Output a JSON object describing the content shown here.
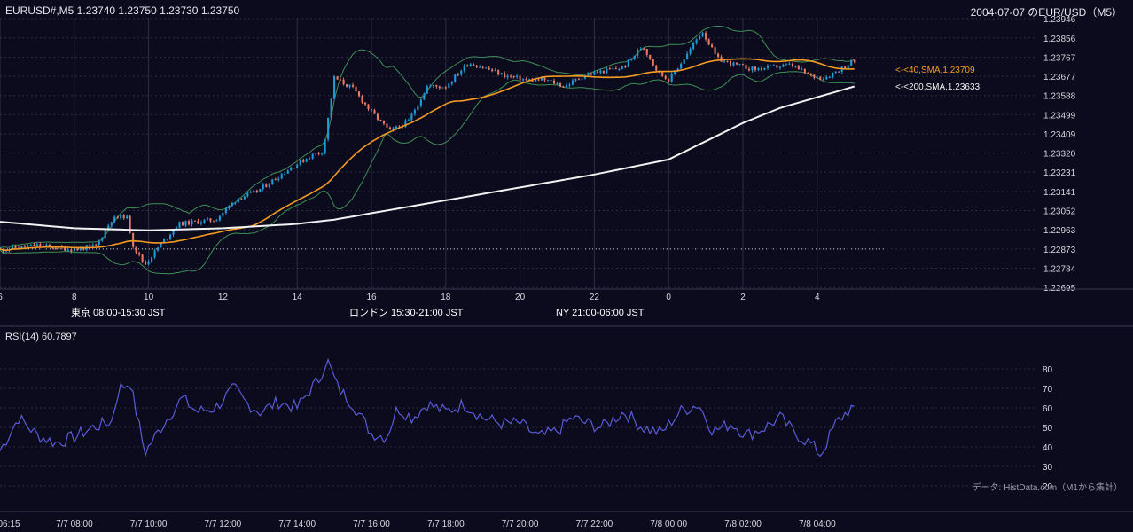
{
  "header": {
    "symbol_line": "EURUSD#,M5 1.23740 1.23750 1.23730 1.23750",
    "date_pair": "2004-07-07 のEUR/USD（M5）"
  },
  "colors": {
    "background": "#0b0b1d",
    "grid": "#2e2e44",
    "bull_candle": "#1e9bd7",
    "bear_candle": "#e77a64",
    "sma40": "#f59a23",
    "sma200": "#f2f2f2",
    "bollinger": "#3f8f55",
    "rsi": "#5a5ad6",
    "session_tokyo": "#254b7a",
    "session_london": "#7a5318",
    "session_ny": "#256543"
  },
  "sessions": [
    {
      "label": "東京 08:00-15:30 JST",
      "color": "#254b7a"
    },
    {
      "label": "ロンドン 15:30-21:00 JST",
      "color": "#7a5318"
    },
    {
      "label": "NY 21:00-06:00 JST",
      "color": "#256543"
    }
  ],
  "indicator": {
    "rsi_label": "RSI(14) 60.7897",
    "source_note": "データ: HistData.com（M1から集計）"
  },
  "chart_data": [
    {
      "type": "candlestick",
      "title": "EURUSD#,M5 1.23740 1.23750 1.23730 1.23750",
      "timeframe": "M5",
      "y_ticks": [
        1.23946,
        1.23856,
        1.23767,
        1.23677,
        1.23588,
        1.23499,
        1.23409,
        1.2332,
        1.23231,
        1.23141,
        1.23052,
        1.22963,
        1.22873,
        1.22784,
        1.22695
      ],
      "ylim": [
        1.22695,
        1.23946
      ],
      "x_hour_ticks": [
        "6",
        "8",
        "10",
        "12",
        "14",
        "16",
        "18",
        "20",
        "22",
        "0",
        "2",
        "4"
      ],
      "x_range_hours": [
        6.0,
        29.0
      ],
      "reference_level": 1.22873,
      "approx_close_path": [
        [
          6.0,
          1.2287
        ],
        [
          7.0,
          1.2289
        ],
        [
          8.0,
          1.2287
        ],
        [
          8.6,
          1.2289
        ],
        [
          9.0,
          1.2301
        ],
        [
          9.4,
          1.2303
        ],
        [
          9.6,
          1.2288
        ],
        [
          9.9,
          1.228
        ],
        [
          10.3,
          1.2289
        ],
        [
          10.8,
          1.2299
        ],
        [
          11.3,
          1.23
        ],
        [
          11.8,
          1.2301
        ],
        [
          12.4,
          1.2311
        ],
        [
          12.9,
          1.2314
        ],
        [
          13.4,
          1.232
        ],
        [
          13.9,
          1.2326
        ],
        [
          14.4,
          1.2331
        ],
        [
          14.7,
          1.2333
        ],
        [
          15.0,
          1.2367
        ],
        [
          15.5,
          1.2362
        ],
        [
          16.0,
          1.2351
        ],
        [
          16.5,
          1.2342
        ],
        [
          17.0,
          1.2347
        ],
        [
          17.5,
          1.2363
        ],
        [
          18.0,
          1.2363
        ],
        [
          18.6,
          1.2374
        ],
        [
          19.0,
          1.2372
        ],
        [
          19.6,
          1.2368
        ],
        [
          20.2,
          1.2366
        ],
        [
          20.7,
          1.2366
        ],
        [
          21.2,
          1.2363
        ],
        [
          21.7,
          1.2368
        ],
        [
          22.2,
          1.237
        ],
        [
          22.8,
          1.2372
        ],
        [
          23.3,
          1.2382
        ],
        [
          23.7,
          1.237
        ],
        [
          24.0,
          1.2366
        ],
        [
          24.5,
          1.2378
        ],
        [
          24.9,
          1.2389
        ],
        [
          25.3,
          1.2376
        ],
        [
          25.8,
          1.2373
        ],
        [
          26.3,
          1.2371
        ],
        [
          26.8,
          1.2372
        ],
        [
          27.3,
          1.2373
        ],
        [
          27.8,
          1.2368
        ],
        [
          28.2,
          1.2367
        ],
        [
          28.6,
          1.2371
        ],
        [
          29.0,
          1.2375
        ]
      ],
      "approx_sma200_path": [
        [
          6.0,
          1.23
        ],
        [
          8.0,
          1.2297
        ],
        [
          10.0,
          1.2296
        ],
        [
          12.0,
          1.2297
        ],
        [
          14.0,
          1.2299
        ],
        [
          15.0,
          1.2301
        ],
        [
          16.0,
          1.2304
        ],
        [
          18.0,
          1.231
        ],
        [
          20.0,
          1.2316
        ],
        [
          22.0,
          1.2322
        ],
        [
          24.0,
          1.2329
        ],
        [
          26.0,
          1.2346
        ],
        [
          27.0,
          1.2353
        ],
        [
          28.0,
          1.2358
        ],
        [
          29.0,
          1.2363
        ]
      ],
      "series": [
        {
          "name": "<-<40,SMA,1.23709",
          "last": 1.23709
        },
        {
          "name": "<-<200,SMA,1.23633",
          "last": 1.23633
        }
      ]
    },
    {
      "type": "line",
      "title": "RSI(14) 60.7897",
      "y_ticks": [
        80,
        70,
        60,
        50,
        40,
        30,
        20
      ],
      "ylim": [
        15,
        90
      ],
      "last": 60.7897,
      "approx_values": [
        [
          6.0,
          38
        ],
        [
          6.5,
          55
        ],
        [
          7.0,
          46
        ],
        [
          7.5,
          42
        ],
        [
          8.0,
          45
        ],
        [
          8.5,
          50
        ],
        [
          9.0,
          53
        ],
        [
          9.2,
          70
        ],
        [
          9.5,
          73
        ],
        [
          9.9,
          37
        ],
        [
          10.4,
          52
        ],
        [
          10.9,
          65
        ],
        [
          11.3,
          58
        ],
        [
          11.8,
          60
        ],
        [
          12.3,
          70
        ],
        [
          12.6,
          63
        ],
        [
          13.0,
          58
        ],
        [
          13.5,
          63
        ],
        [
          14.0,
          60
        ],
        [
          14.3,
          68
        ],
        [
          14.6,
          75
        ],
        [
          14.8,
          85
        ],
        [
          15.1,
          70
        ],
        [
          15.5,
          62
        ],
        [
          16.0,
          47
        ],
        [
          16.4,
          45
        ],
        [
          16.7,
          60
        ],
        [
          17.1,
          55
        ],
        [
          17.5,
          62
        ],
        [
          18.0,
          58
        ],
        [
          18.5,
          62
        ],
        [
          19.0,
          55
        ],
        [
          19.5,
          52
        ],
        [
          20.0,
          52
        ],
        [
          20.5,
          45
        ],
        [
          21.0,
          48
        ],
        [
          21.4,
          55
        ],
        [
          21.8,
          52
        ],
        [
          22.2,
          50
        ],
        [
          22.8,
          58
        ],
        [
          23.3,
          50
        ],
        [
          23.8,
          47
        ],
        [
          24.3,
          58
        ],
        [
          24.8,
          62
        ],
        [
          25.2,
          48
        ],
        [
          25.7,
          52
        ],
        [
          26.1,
          46
        ],
        [
          26.6,
          50
        ],
        [
          27.0,
          55
        ],
        [
          27.4,
          47
        ],
        [
          27.8,
          42
        ],
        [
          28.1,
          36
        ],
        [
          28.5,
          52
        ],
        [
          28.8,
          58
        ],
        [
          29.0,
          61
        ]
      ]
    }
  ],
  "time_axis_labels": [
    "06:15",
    "7/7 08:00",
    "7/7 10:00",
    "7/7 12:00",
    "7/7 14:00",
    "7/7 16:00",
    "7/7 18:00",
    "7/7 20:00",
    "7/7 22:00",
    "7/8 00:00",
    "7/8 02:00",
    "7/8 04:00"
  ]
}
